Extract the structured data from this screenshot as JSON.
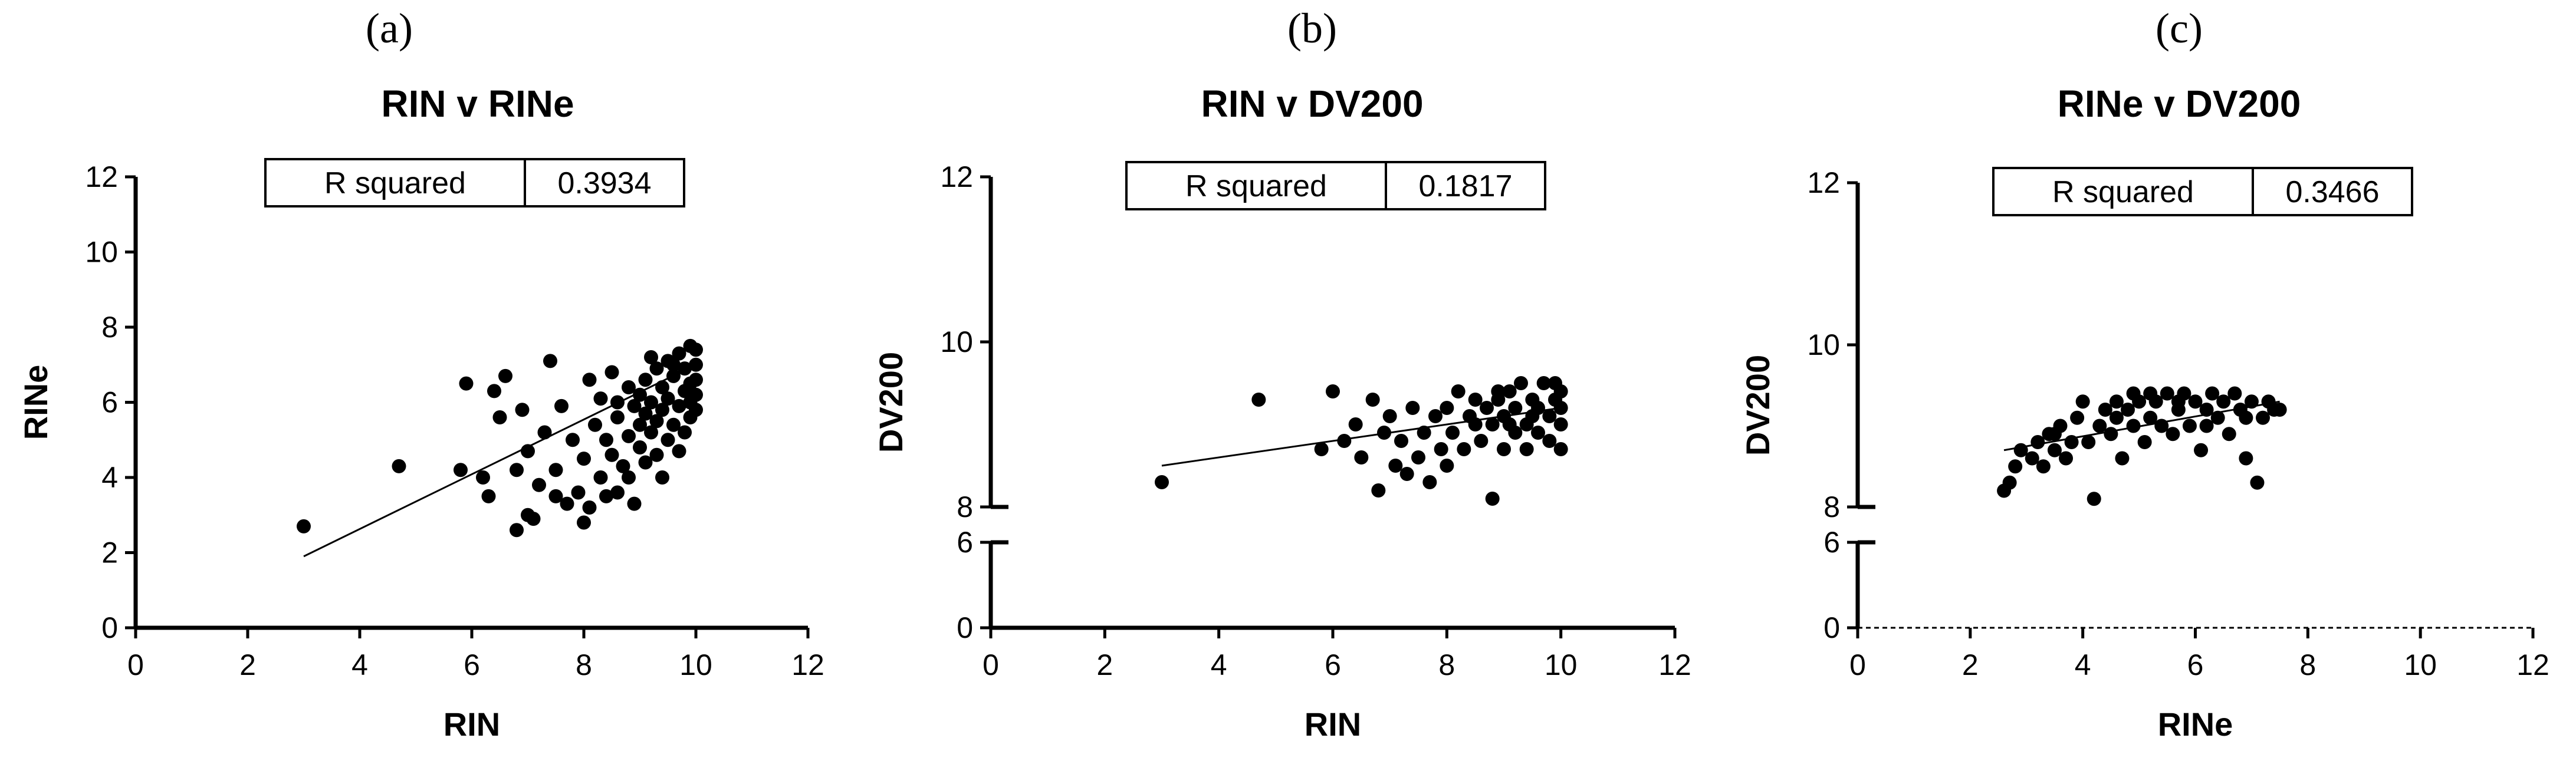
{
  "chart_data": [
    {
      "type": "scatter",
      "panel_label": "(a)",
      "title": "RIN v RINe",
      "xlabel": "RIN",
      "ylabel": "RINe",
      "xlim": [
        0,
        12
      ],
      "ylim": [
        0,
        12
      ],
      "x_ticks": [
        0,
        2,
        4,
        6,
        8,
        10,
        12
      ],
      "y_ticks": [
        0,
        2,
        4,
        6,
        8,
        10,
        12
      ],
      "stats_table": {
        "label": "R squared",
        "value": "0.3934"
      },
      "fit_line": [
        [
          3.0,
          1.9
        ],
        [
          10.0,
          7.0
        ]
      ],
      "points": [
        [
          3.0,
          2.7
        ],
        [
          4.7,
          4.3
        ],
        [
          5.8,
          4.2
        ],
        [
          5.9,
          6.5
        ],
        [
          6.2,
          4.0
        ],
        [
          6.3,
          3.5
        ],
        [
          6.4,
          6.3
        ],
        [
          6.5,
          5.6
        ],
        [
          6.6,
          6.7
        ],
        [
          6.8,
          2.6
        ],
        [
          6.8,
          4.2
        ],
        [
          6.9,
          5.8
        ],
        [
          7.0,
          3.0
        ],
        [
          7.0,
          4.7
        ],
        [
          7.1,
          2.9
        ],
        [
          7.2,
          3.8
        ],
        [
          7.3,
          5.2
        ],
        [
          7.4,
          7.1
        ],
        [
          7.5,
          3.5
        ],
        [
          7.5,
          4.2
        ],
        [
          7.6,
          5.9
        ],
        [
          7.7,
          3.3
        ],
        [
          7.8,
          5.0
        ],
        [
          7.9,
          3.6
        ],
        [
          8.0,
          2.8
        ],
        [
          8.0,
          4.5
        ],
        [
          8.1,
          6.6
        ],
        [
          8.1,
          3.2
        ],
        [
          8.2,
          5.4
        ],
        [
          8.3,
          4.0
        ],
        [
          8.3,
          6.1
        ],
        [
          8.4,
          3.5
        ],
        [
          8.4,
          5.0
        ],
        [
          8.5,
          4.6
        ],
        [
          8.5,
          6.8
        ],
        [
          8.6,
          3.6
        ],
        [
          8.6,
          5.6
        ],
        [
          8.7,
          4.3
        ],
        [
          8.8,
          5.1
        ],
        [
          8.8,
          6.4
        ],
        [
          8.9,
          3.3
        ],
        [
          8.9,
          5.9
        ],
        [
          9.0,
          4.8
        ],
        [
          9.0,
          5.4
        ],
        [
          9.0,
          6.2
        ],
        [
          9.1,
          4.4
        ],
        [
          9.1,
          5.7
        ],
        [
          9.1,
          6.6
        ],
        [
          9.2,
          5.2
        ],
        [
          9.2,
          6.0
        ],
        [
          9.3,
          4.6
        ],
        [
          9.3,
          5.5
        ],
        [
          9.3,
          6.9
        ],
        [
          9.4,
          4.0
        ],
        [
          9.4,
          5.8
        ],
        [
          9.4,
          6.4
        ],
        [
          9.5,
          5.0
        ],
        [
          9.5,
          6.1
        ],
        [
          9.5,
          7.1
        ],
        [
          9.6,
          5.4
        ],
        [
          9.6,
          6.7
        ],
        [
          9.7,
          4.7
        ],
        [
          9.7,
          5.9
        ],
        [
          9.7,
          7.3
        ],
        [
          9.8,
          5.2
        ],
        [
          9.8,
          6.3
        ],
        [
          9.8,
          6.9
        ],
        [
          9.9,
          5.6
        ],
        [
          9.9,
          6.5
        ],
        [
          9.9,
          7.5
        ],
        [
          10.0,
          5.8
        ],
        [
          10.0,
          6.2
        ],
        [
          10.0,
          6.6
        ],
        [
          10.0,
          7.0
        ],
        [
          10.0,
          7.4
        ],
        [
          8.6,
          6.0
        ],
        [
          8.8,
          4.0
        ],
        [
          9.2,
          7.2
        ],
        [
          9.6,
          7.0
        ],
        [
          9.9,
          6.0
        ]
      ]
    },
    {
      "type": "scatter",
      "panel_label": "(b)",
      "title": "RIN v DV200",
      "xlabel": "RIN",
      "ylabel": "DV200",
      "xlim": [
        0,
        12
      ],
      "ylim": [
        0,
        12
      ],
      "y_axis_break": [
        6,
        8
      ],
      "x_ticks": [
        0,
        2,
        4,
        6,
        8,
        10,
        12
      ],
      "y_ticks": [
        0,
        6,
        8,
        10,
        12
      ],
      "stats_table": {
        "label": "R squared",
        "value": "0.1817"
      },
      "fit_line": [
        [
          3.0,
          8.5
        ],
        [
          10.0,
          9.2
        ]
      ],
      "points": [
        [
          3.0,
          8.3
        ],
        [
          4.7,
          9.3
        ],
        [
          5.8,
          8.7
        ],
        [
          6.0,
          9.4
        ],
        [
          6.2,
          8.8
        ],
        [
          6.4,
          9.0
        ],
        [
          6.5,
          8.6
        ],
        [
          6.7,
          9.3
        ],
        [
          6.8,
          8.2
        ],
        [
          6.9,
          8.9
        ],
        [
          7.0,
          9.1
        ],
        [
          7.1,
          8.5
        ],
        [
          7.2,
          8.8
        ],
        [
          7.3,
          8.4
        ],
        [
          7.4,
          9.2
        ],
        [
          7.5,
          8.6
        ],
        [
          7.6,
          8.9
        ],
        [
          7.7,
          8.3
        ],
        [
          7.8,
          9.1
        ],
        [
          7.9,
          8.7
        ],
        [
          8.0,
          8.5
        ],
        [
          8.0,
          9.2
        ],
        [
          8.1,
          8.9
        ],
        [
          8.2,
          9.4
        ],
        [
          8.3,
          8.7
        ],
        [
          8.4,
          9.1
        ],
        [
          8.5,
          9.3
        ],
        [
          8.6,
          8.8
        ],
        [
          8.7,
          9.2
        ],
        [
          8.8,
          8.1
        ],
        [
          8.8,
          9.0
        ],
        [
          8.9,
          9.3
        ],
        [
          9.0,
          8.7
        ],
        [
          9.0,
          9.1
        ],
        [
          9.1,
          9.4
        ],
        [
          9.2,
          8.9
        ],
        [
          9.2,
          9.2
        ],
        [
          9.3,
          9.5
        ],
        [
          9.4,
          8.7
        ],
        [
          9.4,
          9.0
        ],
        [
          9.5,
          9.3
        ],
        [
          9.6,
          8.9
        ],
        [
          9.6,
          9.2
        ],
        [
          9.7,
          9.5
        ],
        [
          9.8,
          8.8
        ],
        [
          9.8,
          9.1
        ],
        [
          9.9,
          9.3
        ],
        [
          10.0,
          8.7
        ],
        [
          10.0,
          9.0
        ],
        [
          10.0,
          9.2
        ],
        [
          10.0,
          9.4
        ],
        [
          8.5,
          9.0
        ],
        [
          9.1,
          9.0
        ],
        [
          9.5,
          9.1
        ],
        [
          9.9,
          9.5
        ],
        [
          8.9,
          9.4
        ]
      ]
    },
    {
      "type": "scatter",
      "panel_label": "(c)",
      "title": "RINe v DV200",
      "xlabel": "RINe",
      "ylabel": "DV200",
      "xlim": [
        0,
        12
      ],
      "ylim": [
        0,
        12
      ],
      "y_axis_break": [
        6,
        8
      ],
      "x_ticks": [
        0,
        2,
        4,
        6,
        8,
        10,
        12
      ],
      "y_ticks": [
        0,
        6,
        8,
        10,
        12
      ],
      "stats_table": {
        "label": "R squared",
        "value": "0.3466"
      },
      "fit_line": [
        [
          2.6,
          8.7
        ],
        [
          7.5,
          9.3
        ]
      ],
      "points": [
        [
          2.6,
          8.2
        ],
        [
          2.7,
          8.3
        ],
        [
          2.8,
          8.5
        ],
        [
          2.9,
          8.7
        ],
        [
          3.1,
          8.6
        ],
        [
          3.2,
          8.8
        ],
        [
          3.3,
          8.5
        ],
        [
          3.4,
          8.9
        ],
        [
          3.5,
          8.7
        ],
        [
          3.6,
          9.0
        ],
        [
          3.7,
          8.6
        ],
        [
          3.8,
          8.8
        ],
        [
          3.9,
          9.1
        ],
        [
          4.0,
          9.3
        ],
        [
          4.1,
          8.8
        ],
        [
          4.2,
          8.1
        ],
        [
          4.3,
          9.0
        ],
        [
          4.4,
          9.2
        ],
        [
          4.5,
          8.9
        ],
        [
          4.6,
          9.1
        ],
        [
          4.7,
          8.6
        ],
        [
          4.8,
          9.2
        ],
        [
          4.9,
          9.0
        ],
        [
          5.0,
          9.3
        ],
        [
          5.1,
          8.8
        ],
        [
          5.2,
          9.1
        ],
        [
          5.3,
          9.3
        ],
        [
          5.4,
          9.0
        ],
        [
          5.5,
          9.4
        ],
        [
          5.6,
          8.9
        ],
        [
          5.7,
          9.2
        ],
        [
          5.8,
          9.4
        ],
        [
          5.9,
          9.0
        ],
        [
          6.0,
          9.3
        ],
        [
          6.1,
          8.7
        ],
        [
          6.2,
          9.2
        ],
        [
          6.3,
          9.4
        ],
        [
          6.4,
          9.1
        ],
        [
          6.5,
          9.3
        ],
        [
          6.6,
          8.9
        ],
        [
          6.7,
          9.4
        ],
        [
          6.8,
          9.2
        ],
        [
          6.9,
          8.6
        ],
        [
          7.0,
          9.3
        ],
        [
          7.1,
          8.3
        ],
        [
          7.2,
          9.1
        ],
        [
          7.3,
          9.3
        ],
        [
          7.4,
          9.2
        ],
        [
          7.5,
          9.2
        ],
        [
          5.2,
          9.4
        ],
        [
          5.7,
          9.3
        ],
        [
          6.2,
          9.0
        ],
        [
          4.9,
          9.4
        ],
        [
          6.9,
          9.1
        ],
        [
          3.5,
          8.9
        ],
        [
          4.6,
          9.3
        ]
      ]
    }
  ]
}
